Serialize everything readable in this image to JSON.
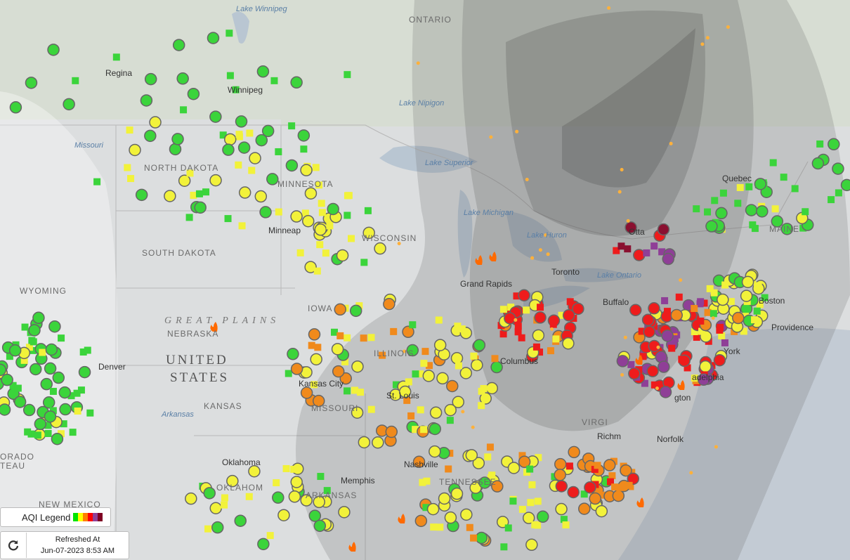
{
  "map": {
    "labels": [
      "Lake Winnipeg",
      "Regina",
      "Winnipeg",
      "ONTARIO",
      "Lake Nipigon",
      "Lake Superior",
      "NORTH DAKOTA",
      "MINNESOTA",
      "SOUTH DAKOTA",
      "Minneap",
      "WISCONSIN",
      "Lake Michigan",
      "Lake Huron",
      "Otta",
      "Toronto",
      "Lake Ontario",
      "Quebec",
      "MAINE",
      "Boston",
      "Providence",
      "York",
      "adelphia",
      "gton",
      "Norfolk",
      "Richm",
      "VIRGI",
      "WYOMING",
      "NEBRASKA",
      "GREAT PLAINS",
      "IOWA",
      "UNITED",
      "STATES",
      "KANSAS",
      "Kansas City",
      "MISSOURI",
      "St. Louis",
      "ILLINOIS",
      "Columbus",
      "Grand Rapids",
      "Buffalo",
      "Memphis",
      "Nashville",
      "TENNESSEE",
      "ARKANSAS",
      "Oklahoma",
      "OKLAHOM",
      "NEW MEXICO",
      "Denver",
      "Arkansas",
      "ORADO",
      "TEAU",
      "Missouri"
    ]
  },
  "legend": {
    "title": "AQI Legend"
  },
  "refresh": {
    "label": "Refreshed At",
    "timestamp": "Jun-07-2023 8:53 AM"
  }
}
